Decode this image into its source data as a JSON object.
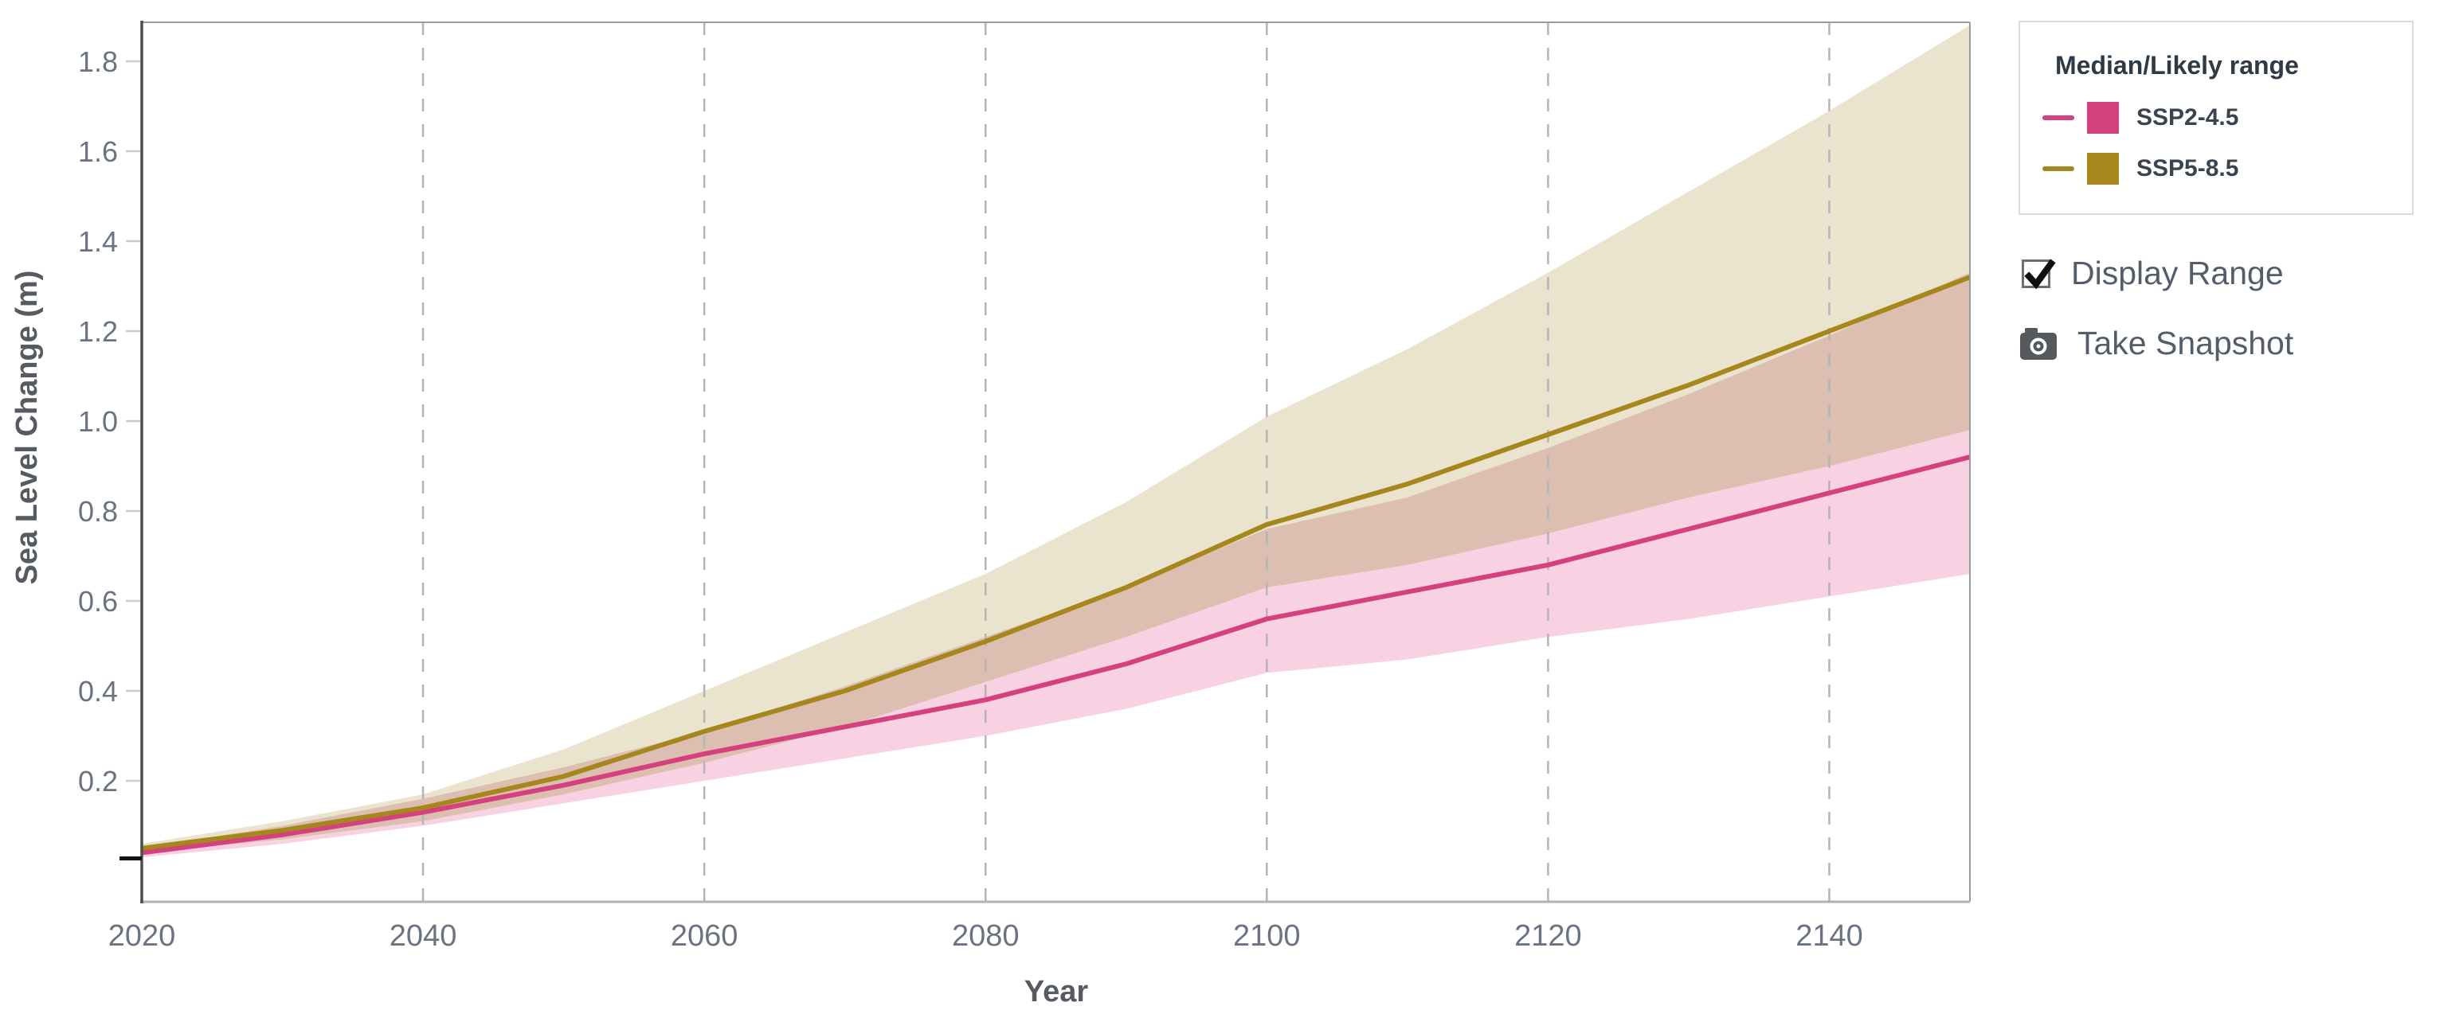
{
  "y_axis": {
    "title": "Sea Level Change (m)",
    "tick_values": [
      0.2,
      0.4,
      0.6,
      0.8,
      1.0,
      1.2,
      1.4,
      1.6,
      1.8
    ],
    "tick_labels": [
      "0.2",
      "0.4",
      "0.6",
      "0.8",
      "1.0",
      "1.2",
      "1.4",
      "1.6",
      "1.8"
    ]
  },
  "x_axis": {
    "title": "Year",
    "tick_years": [
      2020,
      2040,
      2060,
      2080,
      2100,
      2120,
      2140
    ],
    "grid_years": [
      2040,
      2060,
      2080,
      2100,
      2120,
      2140
    ]
  },
  "chart_data": {
    "type": "area",
    "title": "",
    "xlabel": "Year",
    "ylabel": "Sea Level Change (m)",
    "units": "m",
    "x": [
      2020,
      2030,
      2040,
      2050,
      2060,
      2070,
      2080,
      2090,
      2100,
      2110,
      2120,
      2130,
      2140,
      2150
    ],
    "x_range": [
      2020,
      2150
    ],
    "y_range": [
      -0.07,
      1.885
    ],
    "grid": "vertical-dashed",
    "legend_position": "top-right",
    "overlap_color": "#ddbfb2",
    "series": [
      {
        "name": "SSP2-4.5",
        "median": [
          0.04,
          0.08,
          0.13,
          0.19,
          0.26,
          0.32,
          0.38,
          0.46,
          0.56,
          0.62,
          0.68,
          0.76,
          0.84,
          0.92
        ],
        "likely_low": [
          0.03,
          0.06,
          0.1,
          0.15,
          0.2,
          0.25,
          0.3,
          0.36,
          0.44,
          0.47,
          0.52,
          0.56,
          0.61,
          0.66
        ],
        "likely_high": [
          0.05,
          0.1,
          0.16,
          0.23,
          0.31,
          0.41,
          0.52,
          0.63,
          0.76,
          0.83,
          0.94,
          1.06,
          1.19,
          1.33
        ],
        "line_color": "#d5417f",
        "band_color": "#f8d2e2"
      },
      {
        "name": "SSP5-8.5",
        "median": [
          0.05,
          0.09,
          0.14,
          0.21,
          0.31,
          0.4,
          0.51,
          0.63,
          0.77,
          0.86,
          0.97,
          1.08,
          1.2,
          1.32
        ],
        "likely_low": [
          0.04,
          0.07,
          0.11,
          0.17,
          0.24,
          0.32,
          0.42,
          0.52,
          0.63,
          0.68,
          0.75,
          0.83,
          0.9,
          0.98
        ],
        "likely_high": [
          0.06,
          0.11,
          0.17,
          0.27,
          0.4,
          0.53,
          0.66,
          0.82,
          1.01,
          1.16,
          1.33,
          1.51,
          1.69,
          1.88
        ],
        "line_color": "#a6871d",
        "band_color": "#eae4cf"
      }
    ],
    "start_marker_value": 0.03
  },
  "legend": {
    "title": "Median/Likely range",
    "items": [
      {
        "label": "SSP2-4.5",
        "color": "#d5417f"
      },
      {
        "label": "SSP5-8.5",
        "color": "#a6871d"
      }
    ]
  },
  "controls": {
    "display_range_label": "Display Range",
    "display_range_checked": true,
    "take_snapshot_label": "Take Snapshot"
  },
  "colors": {
    "grid": "#b4b4b4",
    "frame": "#9c9c9c",
    "bottom_axis": "#b2b2b2",
    "left_axis": "#4d4d4d",
    "tick_text": "#6a7380",
    "axis_title_text": "#565b61",
    "control_text": "#535e6a",
    "camera_icon": "#55585c"
  }
}
